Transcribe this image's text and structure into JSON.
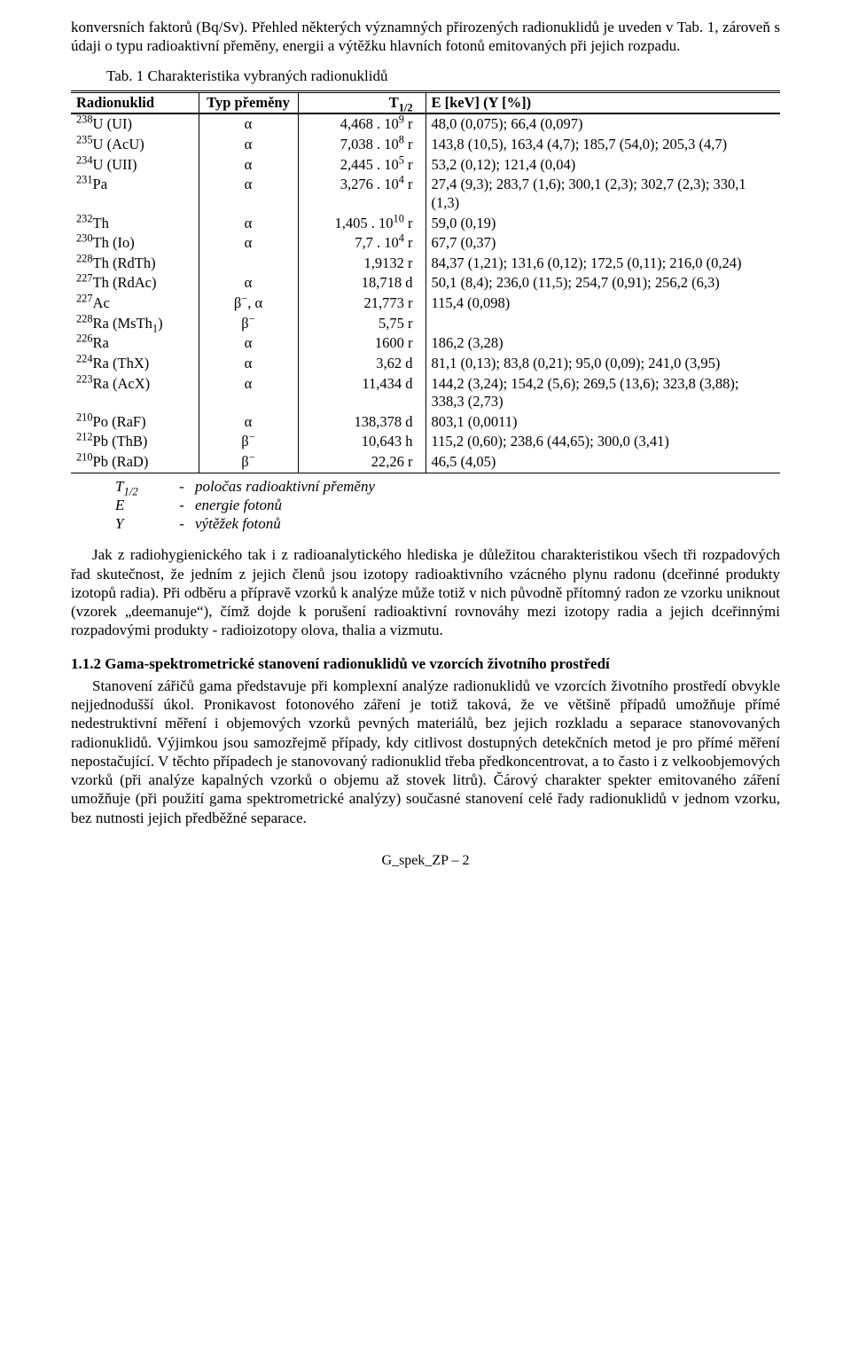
{
  "intro1": "konversních faktorů (Bq/Sv). Přehled některých významných přirozených radionuklidů je uveden v Tab. 1, zároveň s údaji o typu radioaktivní přeměny, energii a výtěžku hlavních fotonů emitovaných při jejich rozpadu.",
  "table": {
    "caption": "Tab. 1  Charakteristika vybraných radionuklidů",
    "headers": {
      "nuclide": "Radionuklid",
      "type": "Typ přeměny",
      "halflife": "T",
      "halflife_sub": "1/2",
      "energy": "E [keV] (Y [%])"
    },
    "rows": [
      {
        "nuc": "<sup>238</sup>U  (UI)",
        "typ": "α",
        "t": "4,468 . 10<sup>9</sup> r",
        "e": "48,0 (0,075); 66,4 (0,097)"
      },
      {
        "nuc": "<sup>235</sup>U  (AcU)",
        "typ": "α",
        "t": "7,038 . 10<sup>8</sup> r",
        "e": "143,8 (10,5), 163,4 (4,7); 185,7 (54,0); 205,3 (4,7)"
      },
      {
        "nuc": "<sup>234</sup>U  (UII)",
        "typ": "α",
        "t": "2,445 . 10<sup>5</sup> r",
        "e": "53,2 (0,12); 121,4 (0,04)"
      },
      {
        "nuc": "<sup>231</sup>Pa",
        "typ": "α",
        "t": "3,276 . 10<sup>4</sup> r",
        "e": "27,4 (9,3); 283,7 (1,6); 300,1 (2,3); 302,7 (2,3); 330,1 (1,3)"
      },
      {
        "nuc": "<sup>232</sup>Th",
        "typ": "α",
        "t": "1,405 . 10<sup>10</sup> r",
        "e": "59,0 (0,19)"
      },
      {
        "nuc": "<sup>230</sup>Th  (Io)",
        "typ": "α",
        "t": "7,7 . 10<sup>4</sup> r",
        "e": "67,7 (0,37)"
      },
      {
        "nuc": "<sup>228</sup>Th  (RdTh)",
        "typ": "",
        "t": "1,9132 r",
        "e": "84,37 (1,21); 131,6 (0,12); 172,5 (0,11); 216,0 (0,24)"
      },
      {
        "nuc": "<sup>227</sup>Th  (RdAc)",
        "typ": "α",
        "t": "18,718 d",
        "e": "50,1 (8,4); 236,0 (11,5); 254,7 (0,91); 256,2 (6,3)"
      },
      {
        "nuc": "<sup>227</sup>Ac",
        "typ": "β<sup>−</sup>, α",
        "t": "21,773 r",
        "e": "115,4 (0,098)"
      },
      {
        "nuc": "<sup>228</sup>Ra  (MsTh<sub>1</sub>)",
        "typ": "β<sup>−</sup>",
        "t": "5,75 r",
        "e": ""
      },
      {
        "nuc": "<sup>226</sup>Ra",
        "typ": "α",
        "t": "1600 r",
        "e": "186,2 (3,28)"
      },
      {
        "nuc": "<sup>224</sup>Ra  (ThX)",
        "typ": "α",
        "t": "3,62 d",
        "e": "81,1 (0,13); 83,8 (0,21); 95,0 (0,09); 241,0 (3,95)"
      },
      {
        "nuc": "<sup>223</sup>Ra  (AcX)",
        "typ": "α",
        "t": "11,434 d",
        "e": "144,2 (3,24); 154,2 (5,6); 269,5 (13,6); 323,8 (3,88); 338,3 (2,73)"
      },
      {
        "nuc": "<sup>210</sup>Po  (RaF)",
        "typ": "α",
        "t": "138,378 d",
        "e": "803,1 (0,0011)"
      },
      {
        "nuc": "<sup>212</sup>Pb  (ThB)",
        "typ": "β<sup>−</sup>",
        "t": "10,643 h",
        "e": "115,2 (0,60); 238,6 (44,65); 300,0 (3,41)"
      },
      {
        "nuc": "<sup>210</sup>Pb  (RaD)",
        "typ": "β<sup>−</sup>",
        "t": "22,26 r",
        "e": "46,5 (4,05)"
      }
    ],
    "legend": [
      {
        "sym": "T<sub>1/2</sub>",
        "txt": "poločas radioaktivní přeměny"
      },
      {
        "sym": "E",
        "txt": "energie fotonů"
      },
      {
        "sym": "Y",
        "txt": "výtěžek fotonů"
      }
    ]
  },
  "para2": "Jak z radiohygienického tak i z radioanalytického hlediska je důležitou charakteristikou všech tři rozpadových řad skutečnost, že jedním z jejich členů jsou izotopy radioaktivního vzácného plynu radonu (dceřinné produkty izotopů radia). Při odběru a přípravě vzorků k analýze může totiž v nich původně přítomný radon ze vzorku uniknout (vzorek „deemanuje“), čímž dojde k porušení radioaktivní rovnováhy mezi izotopy radia a jejich dceřinnými rozpadovými produkty - radioizotopy olova, thalia a vizmutu.",
  "heading": "1.1.2  Gama-spektrometrické stanovení radionuklidů ve vzorcích životního prostředí",
  "para3": "Stanovení zářičů gama představuje při komplexní analýze radionuklidů ve vzorcích životního prostředí obvykle nejjednodušší úkol. Pronikavost fotonového záření je totiž taková, že ve většině případů umožňuje přímé nedestruktivní měření i objemových vzorků pevných materiálů, bez jejich rozkladu a separace stanovovaných radionuklidů. Výjimkou jsou samozřejmě případy, kdy citlivost dostupných detekčních metod je pro přímé měření nepostačující. V těchto případech je stanovovaný radionuklid třeba předkoncentrovat, a to často i z velkoobjemových vzorků (při analýze kapalných vzorků o objemu až stovek litrů). Čárový charakter spekter emitovaného záření umožňuje (při použití gama spektrometrické analýzy) současné stanovení celé řady radionuklidů v jednom vzorku, bez nutnosti jejich předběžné separace.",
  "footer": "G_spek_ZP – 2"
}
